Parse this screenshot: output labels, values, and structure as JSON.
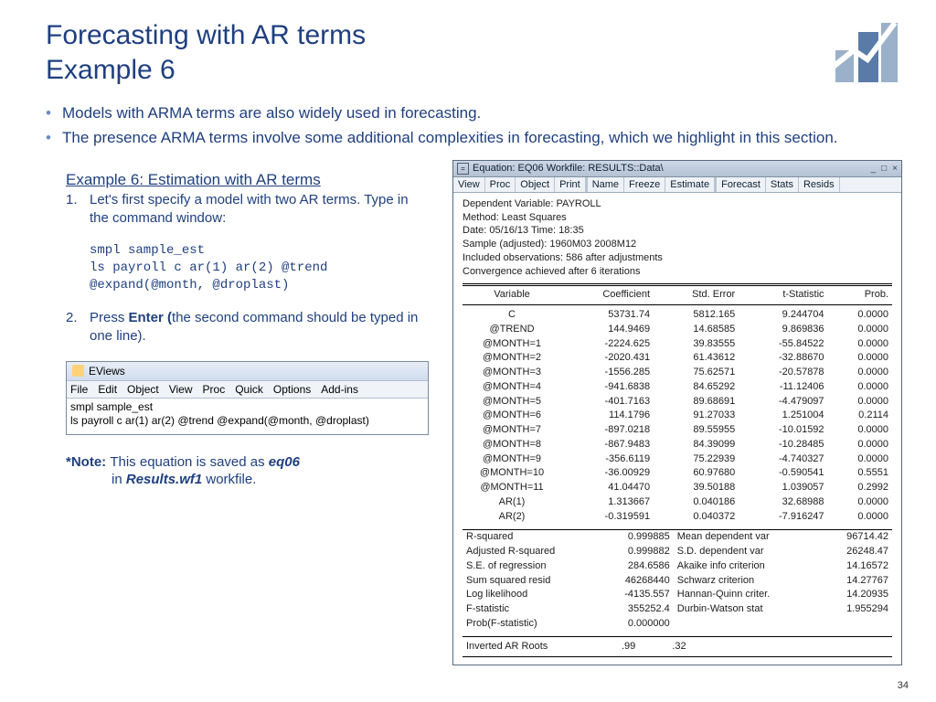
{
  "title_line1": "Forecasting with AR terms",
  "title_line2": "Example 6",
  "bullets": [
    "Models with ARMA terms are also widely used in forecasting.",
    "The presence ARMA terms involve some additional complexities in forecasting, which we highlight in this section."
  ],
  "example_title": "Example 6: Estimation with AR terms",
  "step1": "Let's first specify a model with two AR terms. Type in the command window:",
  "code": "smpl sample_est\nls payroll c ar(1) ar(2) @trend\n@expand(@month, @droplast)",
  "step2_prefix": "Press ",
  "step2_bold": "Enter (",
  "step2_suffix": "the second command should be typed in one line).",
  "eviews": {
    "title": "EViews",
    "menus": [
      "File",
      "Edit",
      "Object",
      "View",
      "Proc",
      "Quick",
      "Options",
      "Add-ins"
    ],
    "line1": "smpl sample_est",
    "line2": "ls payroll c ar(1) ar(2) @trend @expand(@month, @droplast)"
  },
  "note_label": "*Note: ",
  "note_body1": "This equation is saved as ",
  "note_eq": "eq06",
  "note_body2": " in ",
  "note_file": "Results.wf1",
  "note_body3": " workfile.",
  "output": {
    "title": "Equation: EQ06   Workfile: RESULTS::Data\\",
    "toolbar1": [
      "View",
      "Proc",
      "Object"
    ],
    "toolbar2": [
      "Print",
      "Name",
      "Freeze"
    ],
    "toolbar3": [
      "Estimate",
      "Forecast",
      "Stats",
      "Resids"
    ],
    "header": [
      "Dependent Variable: PAYROLL",
      "Method: Least Squares",
      "Date: 05/16/13   Time: 18:35",
      "Sample (adjusted): 1960M03 2008M12",
      "Included observations: 586 after adjustments",
      "Convergence achieved after 6 iterations"
    ],
    "cols": [
      "Variable",
      "Coefficient",
      "Std. Error",
      "t-Statistic",
      "Prob."
    ],
    "rows": [
      [
        "C",
        "53731.74",
        "5812.165",
        "9.244704",
        "0.0000"
      ],
      [
        "@TREND",
        "144.9469",
        "14.68585",
        "9.869836",
        "0.0000"
      ],
      [
        "@MONTH=1",
        "-2224.625",
        "39.83555",
        "-55.84522",
        "0.0000"
      ],
      [
        "@MONTH=2",
        "-2020.431",
        "61.43612",
        "-32.88670",
        "0.0000"
      ],
      [
        "@MONTH=3",
        "-1556.285",
        "75.62571",
        "-20.57878",
        "0.0000"
      ],
      [
        "@MONTH=4",
        "-941.6838",
        "84.65292",
        "-11.12406",
        "0.0000"
      ],
      [
        "@MONTH=5",
        "-401.7163",
        "89.68691",
        "-4.479097",
        "0.0000"
      ],
      [
        "@MONTH=6",
        "114.1796",
        "91.27033",
        "1.251004",
        "0.2114"
      ],
      [
        "@MONTH=7",
        "-897.0218",
        "89.55955",
        "-10.01592",
        "0.0000"
      ],
      [
        "@MONTH=8",
        "-867.9483",
        "84.39099",
        "-10.28485",
        "0.0000"
      ],
      [
        "@MONTH=9",
        "-356.6119",
        "75.22939",
        "-4.740327",
        "0.0000"
      ],
      [
        "@MONTH=10",
        "-36.00929",
        "60.97680",
        "-0.590541",
        "0.5551"
      ],
      [
        "@MONTH=11",
        "41.04470",
        "39.50188",
        "1.039057",
        "0.2992"
      ],
      [
        "AR(1)",
        "1.313667",
        "0.040186",
        "32.68988",
        "0.0000"
      ],
      [
        "AR(2)",
        "-0.319591",
        "0.040372",
        "-7.916247",
        "0.0000"
      ]
    ],
    "stats": [
      [
        "R-squared",
        "0.999885",
        "Mean dependent var",
        "96714.42"
      ],
      [
        "Adjusted R-squared",
        "0.999882",
        "S.D. dependent var",
        "26248.47"
      ],
      [
        "S.E. of regression",
        "284.6586",
        "Akaike info criterion",
        "14.16572"
      ],
      [
        "Sum squared resid",
        "46268440",
        "Schwarz criterion",
        "14.27767"
      ],
      [
        "Log likelihood",
        "-4135.557",
        "Hannan-Quinn criter.",
        "14.20935"
      ],
      [
        "F-statistic",
        "355252.4",
        "Durbin-Watson stat",
        "1.955294"
      ],
      [
        "Prob(F-statistic)",
        "0.000000",
        "",
        ""
      ]
    ],
    "roots_label": "Inverted AR Roots",
    "root1": ".99",
    "root2": ".32"
  },
  "page_num": "34"
}
